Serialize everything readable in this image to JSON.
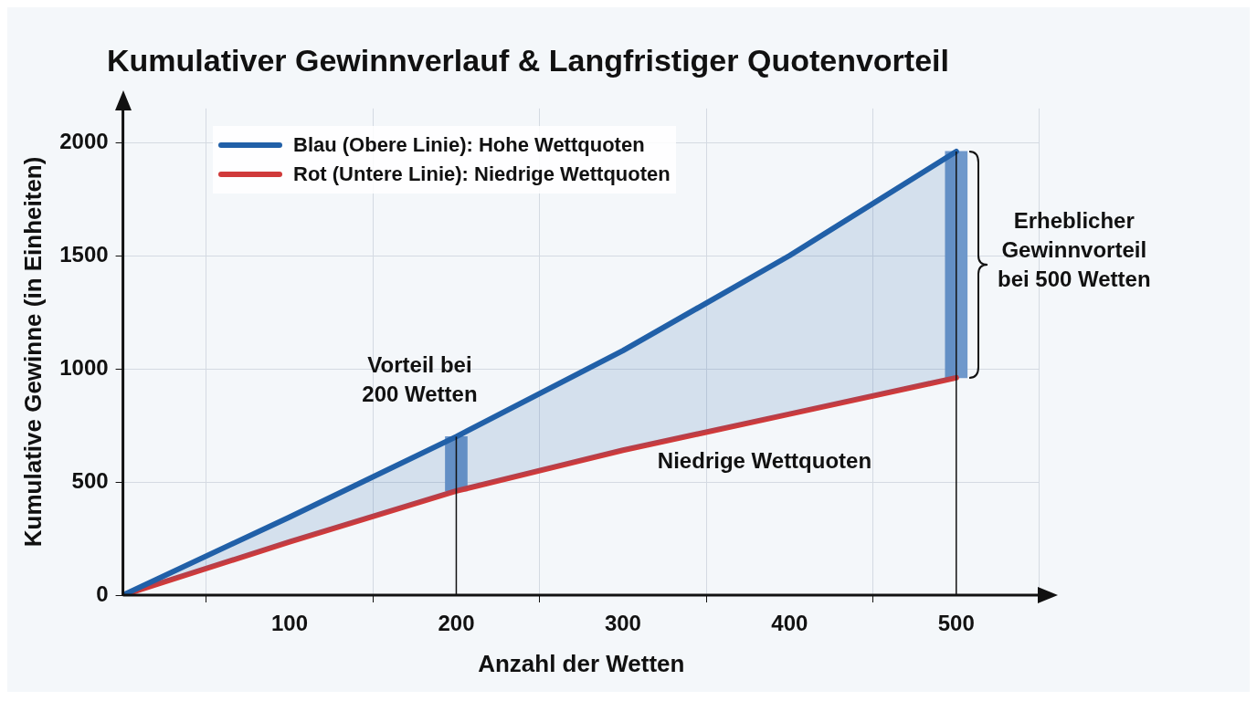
{
  "chart_data": {
    "type": "line",
    "title": "Kumulativer Gewinnverlauf & Langfristiger Quotenvorteil",
    "xlabel": "Anzahl der Wetten",
    "ylabel": "Kumulative Gewinne (in Einheiten)",
    "x": [
      0,
      100,
      200,
      300,
      400,
      500
    ],
    "series": [
      {
        "name": "Blau (Obere Linie): Hohe Wettquoten",
        "color": "#2160a8",
        "values": [
          0,
          345,
          700,
          1080,
          1500,
          1960
        ]
      },
      {
        "name": "Rot (Untere Linie): Niedrige Wettquoten",
        "color": "#d03a3a",
        "values": [
          0,
          235,
          460,
          640,
          800,
          960
        ]
      },
      {
        "type": "bar",
        "x": [
          200,
          500
        ],
        "base": [
          460,
          960
        ],
        "values": [
          240,
          1000
        ],
        "color": "#6f98cb"
      }
    ],
    "xlim": [
      0,
      550
    ],
    "xticks": [
      100,
      200,
      300,
      400,
      500
    ],
    "ylim": [
      0,
      2150
    ],
    "yticks": [
      0,
      500,
      1000,
      1500,
      2000
    ],
    "ref_lines": [
      {
        "axis": "x",
        "value": 200,
        "label": "Vorteil bei\n200 Wetten"
      },
      {
        "axis": "x",
        "value": 500,
        "label": "Erheblicher\nGewinnvorteil\nbei 500 Wetten"
      }
    ],
    "annotations": [
      "Niedrige Wettquoten"
    ],
    "grid": true,
    "legend": "top left",
    "marker": "none",
    "line_style": "solid"
  }
}
